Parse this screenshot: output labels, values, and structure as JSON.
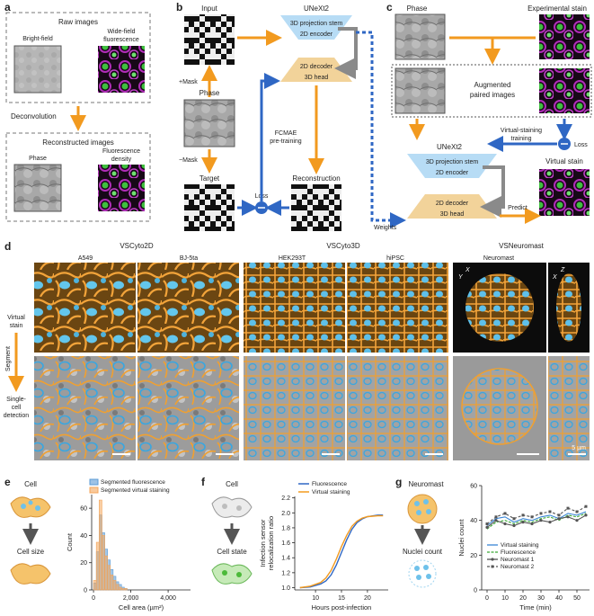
{
  "panels": {
    "a": {
      "letter": "a",
      "raw_title": "Raw images",
      "brightfield": "Bright-field",
      "widefield_1": "Wide-field",
      "widefield_2": "fluorescence",
      "deconvolution": "Deconvolution",
      "recon_title": "Reconstructed images",
      "phase": "Phase",
      "fluor_density_1": "Fluorescence",
      "fluor_density_2": "density"
    },
    "b": {
      "letter": "b",
      "input": "Input",
      "plus_mask": "+Mask",
      "phase": "Phase",
      "minus_mask": "−Mask",
      "target": "Target",
      "unext2": "UNeXt2",
      "stem": "3D projection stem",
      "encoder": "2D encoder",
      "decoder": "2D decoder",
      "head": "3D head",
      "fcmae_1": "FCMAE",
      "fcmae_2": "pre-training",
      "reconstruction": "Reconstruction",
      "loss": "Loss",
      "weights": "Weights"
    },
    "c": {
      "letter": "c",
      "phase": "Phase",
      "experimental": "Experimental stain",
      "augmented_1": "Augmented",
      "augmented_2": "paired images",
      "unext2": "UNeXt2",
      "stem": "3D projection stem",
      "encoder": "2D encoder",
      "decoder": "2D decoder",
      "head": "3D head",
      "vs_training_1": "Virtual-staining",
      "vs_training_2": "training",
      "loss": "Loss",
      "virtual_stain": "Virtual stain",
      "predict": "Predict"
    },
    "d": {
      "letter": "d",
      "group1": "VSCyto2D",
      "group2": "VSCyto3D",
      "group3": "VSNeuromast",
      "cols": [
        "A549",
        "BJ-5ta",
        "HEK293T",
        "hiPSC",
        "Neuromast"
      ],
      "row_vs_1": "Virtual",
      "row_vs_2": "stain",
      "segment": "Segment",
      "single_1": "Single-",
      "single_2": "cell",
      "single_3": "detection",
      "scale": "5 µm",
      "ax_x": "X",
      "ax_y": "Y",
      "ax_z": "Z",
      "ax_x2": "X"
    },
    "e": {
      "letter": "e",
      "cell": "Cell",
      "cell_size": "Cell size"
    },
    "f": {
      "letter": "f",
      "cell": "Cell",
      "cell_state": "Cell state"
    },
    "g": {
      "letter": "g",
      "neuromast": "Neuromast",
      "nuclei_count": "Nuclei count"
    }
  },
  "colors": {
    "orange": "#f29a1f",
    "blue": "#2f67c4",
    "stem_blue": "#b7dcf5",
    "head_tan": "#f2d39a",
    "green": "#3aa935",
    "magenta": "#a028a8",
    "gray_arrow": "#8a8a8a",
    "cyan_cell": "#52b8e8"
  },
  "chart_data": [
    {
      "id": "e",
      "type": "bar",
      "xlabel": "Cell area (µm²)",
      "ylabel": "Count",
      "xlim": [
        -100,
        5200
      ],
      "ylim": [
        0,
        70
      ],
      "xticks": [
        0,
        2000,
        4000
      ],
      "xticklabels": [
        "0",
        "2,000",
        "4,000"
      ],
      "yticks": [
        0,
        20,
        40,
        60
      ],
      "legend": "top-right",
      "bin_edges": [
        0,
        150,
        300,
        450,
        600,
        750,
        900,
        1050,
        1200,
        1350,
        1500,
        1650,
        1800
      ],
      "series": [
        {
          "name": "Segmented fluorescence",
          "color": "#5b9bd5",
          "values": [
            5,
            28,
            55,
            42,
            30,
            22,
            15,
            10,
            6,
            4,
            2,
            1
          ]
        },
        {
          "name": "Segmented virtual staining",
          "color": "#f4a55a",
          "values": [
            7,
            35,
            66,
            40,
            25,
            18,
            11,
            7,
            4,
            2,
            1,
            1
          ]
        }
      ]
    },
    {
      "id": "f",
      "type": "line",
      "xlabel": "Hours post-infection",
      "ylabel": "Infection sensor relocalization ratio",
      "xlim": [
        6,
        24
      ],
      "ylim": [
        0.97,
        2.22
      ],
      "xticks": [
        10,
        15,
        20
      ],
      "yticks": [
        1.0,
        1.2,
        1.4,
        1.6,
        1.8,
        2.0,
        2.2
      ],
      "yticklabels": [
        "1.0",
        "1.2",
        "1.4",
        "1.6",
        "1.8",
        "2.0",
        "2.2"
      ],
      "legend": "top-left",
      "x": [
        7,
        9,
        11,
        12,
        13,
        14,
        15,
        16,
        17,
        18,
        19,
        20,
        22,
        23
      ],
      "series": [
        {
          "name": "Fluorescence",
          "color": "#2f67c4",
          "values": [
            1.0,
            1.01,
            1.05,
            1.09,
            1.17,
            1.3,
            1.47,
            1.64,
            1.78,
            1.87,
            1.92,
            1.95,
            1.97,
            1.97
          ]
        },
        {
          "name": "Virtual staining",
          "color": "#f29a1f",
          "values": [
            1.0,
            1.02,
            1.07,
            1.13,
            1.23,
            1.38,
            1.55,
            1.7,
            1.82,
            1.89,
            1.93,
            1.95,
            1.96,
            1.96
          ]
        }
      ]
    },
    {
      "id": "g",
      "type": "line",
      "xlabel": "Time (min)",
      "ylabel": "Nuclei count",
      "xlim": [
        -3,
        57
      ],
      "ylim": [
        0,
        60
      ],
      "xticks": [
        0,
        10,
        20,
        30,
        40,
        50
      ],
      "yticks": [
        0,
        20,
        40,
        60
      ],
      "legend": "bottom-left",
      "x": [
        0,
        5,
        10,
        15,
        20,
        25,
        30,
        35,
        40,
        45,
        50,
        55
      ],
      "series": [
        {
          "name": "Virtual staining",
          "color": "#3a86d6",
          "marker": "none",
          "values": [
            37,
            41,
            42,
            39,
            41,
            40,
            42,
            43,
            41,
            44,
            43,
            45
          ]
        },
        {
          "name": "Fluorescence",
          "color": "#3aa935",
          "marker": "none",
          "values": [
            35,
            39,
            40,
            38,
            40,
            39,
            41,
            42,
            40,
            43,
            42,
            44
          ]
        },
        {
          "name": "Neuromast 1",
          "color": "#555555",
          "marker": "circle",
          "values": [
            36,
            40,
            38,
            37,
            39,
            38,
            40,
            39,
            41,
            42,
            40,
            43
          ]
        },
        {
          "name": "Neuromast 2",
          "color": "#555555",
          "marker": "square",
          "values": [
            38,
            42,
            44,
            41,
            43,
            42,
            44,
            45,
            43,
            47,
            45,
            48
          ]
        }
      ]
    }
  ]
}
